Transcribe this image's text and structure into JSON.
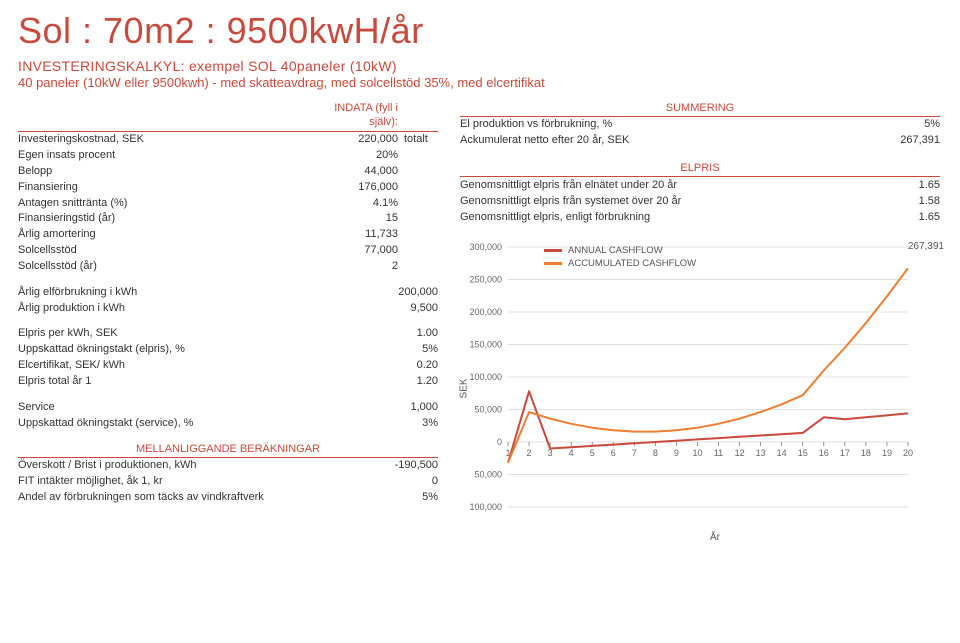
{
  "title": "Sol : 70m2 : 9500kwH/år",
  "subtitle1": "INVESTERINGSKALKYL: exempel SOL 40paneler (10kW)",
  "subtitle2": "40 paneler (10kW eller 9500kwh) - med skatteavdrag, med solcellstöd 35%, med elcertifikat",
  "indata_header_left": "INDATA (fyll i själv):",
  "indata_rows": [
    {
      "l": "Investeringskostnad, SEK",
      "v": "220,000",
      "n": "totalt"
    },
    {
      "l": "Egen insats procent",
      "v": "20%",
      "n": ""
    },
    {
      "l": "Belopp",
      "v": "44,000",
      "n": ""
    },
    {
      "l": "Finansiering",
      "v": "176,000",
      "n": ""
    },
    {
      "l": "Antagen snittränta (%)",
      "v": "4.1%",
      "n": ""
    },
    {
      "l": "Finansieringstid (år)",
      "v": "15",
      "n": ""
    },
    {
      "l": "Årlig amortering",
      "v": "11,733",
      "n": ""
    },
    {
      "l": "Solcellsstöd",
      "v": "77,000",
      "n": ""
    },
    {
      "l": "Solcellsstöd (år)",
      "v": "2",
      "n": ""
    }
  ],
  "usage_rows": [
    {
      "l": "Årlig elförbrukning i kWh",
      "v": "200,000"
    },
    {
      "l": "Årlig produktion i kWh",
      "v": "9,500"
    }
  ],
  "price_rows": [
    {
      "l": "Elpris per kWh, SEK",
      "v": "1.00"
    },
    {
      "l": "Uppskattad ökningstakt (elpris), %",
      "v": "5%"
    },
    {
      "l": "Elcertifikat, SEK/ kWh",
      "v": "0.20"
    },
    {
      "l": "Elpris total år 1",
      "v": "1.20"
    }
  ],
  "service_rows": [
    {
      "l": "Service",
      "v": "1,000"
    },
    {
      "l": "Uppskattad ökningstakt (service), %",
      "v": "3%"
    }
  ],
  "mellan_header": "MELLANLIGGANDE BERÄKNINGAR",
  "mellan_rows": [
    {
      "l": "Överskott / Brist i produktionen, kWh",
      "v": "-190,500"
    },
    {
      "l": "FIT intäkter möjlighet, åk 1, kr",
      "v": "0"
    },
    {
      "l": "Andel av förbrukningen som täcks av vindkraftverk",
      "v": "5%"
    }
  ],
  "summ_header": "SUMMERING",
  "summ_rows": [
    {
      "l": "El produktion vs förbrukning, %",
      "v": "5%"
    },
    {
      "l": "Ackumulerat netto efter 20 år, SEK",
      "v": "267,391"
    }
  ],
  "elpris_header": "ELPRIS",
  "elpris_rows": [
    {
      "l": "Genomsnittligt elpris från elnätet under 20 år",
      "v": "1.65"
    },
    {
      "l": "Genomsnittligt elpris från systemet över 20 år",
      "v": "1.58"
    },
    {
      "l": "Genomsnittligt elpris, enligt förbrukning",
      "v": "1.65"
    }
  ],
  "chart": {
    "type": "line",
    "y_ticks": [
      "300,000",
      "250,000",
      "200,000",
      "150,000",
      "100,000",
      "50,000",
      "0",
      "50,000",
      "100,000"
    ],
    "y_tick_pos": [
      0,
      40,
      80,
      120,
      160,
      200,
      240,
      280,
      320
    ],
    "x_ticks": [
      "1",
      "2",
      "3",
      "4",
      "5",
      "6",
      "7",
      "8",
      "9",
      "10",
      "11",
      "12",
      "13",
      "14",
      "15",
      "16",
      "17",
      "18",
      "19",
      "20"
    ],
    "x_label": "År",
    "y_label": "SEK",
    "grid_color": "#d9d9d9",
    "background_color": "#ffffff",
    "series": [
      {
        "name": "ANNUAL CASHFLOW",
        "color": "#c84a3c",
        "width": 2,
        "values": [
          -32000,
          78000,
          -10000,
          -8000,
          -6000,
          -4000,
          -2000,
          0,
          2000,
          4000,
          6000,
          8000,
          10000,
          12000,
          14000,
          38000,
          35000,
          38000,
          41000,
          44000
        ]
      },
      {
        "name": "ACCUMULATED CASHFLOW",
        "color": "#ed7d31",
        "width": 2,
        "values": [
          -32000,
          46000,
          36000,
          28000,
          22000,
          18000,
          16000,
          16000,
          18000,
          22000,
          28000,
          36000,
          46000,
          58000,
          72000,
          110000,
          145000,
          183000,
          224000,
          267391
        ]
      }
    ],
    "ylim_min": -100000,
    "ylim_max": 300000,
    "callout": "267,391",
    "axis_font_size": 9,
    "axis_color": "#666666"
  },
  "legend": {
    "a": "ANNUAL CASHFLOW",
    "b": "ACCUMULATED CASHFLOW"
  }
}
